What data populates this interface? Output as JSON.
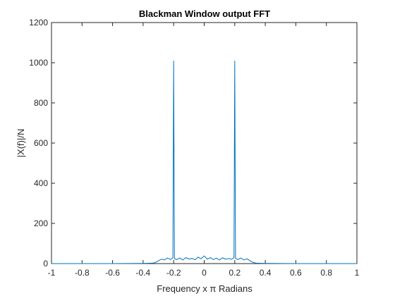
{
  "chart_data": {
    "type": "line",
    "title": "Blackman Window output FFT",
    "xlabel": "Frequency x π Radians",
    "ylabel": "|X(f)|/N",
    "x": [
      -1,
      -0.6,
      -0.4,
      -0.34,
      -0.32,
      -0.3,
      -0.28,
      -0.26,
      -0.24,
      -0.22,
      -0.205,
      -0.2,
      -0.195,
      -0.18,
      -0.16,
      -0.14,
      -0.12,
      -0.1,
      -0.08,
      -0.06,
      -0.04,
      -0.02,
      0,
      0.02,
      0.04,
      0.06,
      0.08,
      0.1,
      0.12,
      0.14,
      0.16,
      0.18,
      0.195,
      0.2,
      0.205,
      0.22,
      0.24,
      0.26,
      0.28,
      0.3,
      0.32,
      0.34,
      0.4,
      0.6,
      1
    ],
    "series": [
      {
        "color": "#0072bd",
        "values": [
          0,
          0,
          1,
          2,
          5,
          14,
          22,
          18,
          28,
          20,
          30,
          1010,
          25,
          20,
          28,
          18,
          30,
          22,
          26,
          19,
          32,
          24,
          38,
          22,
          30,
          20,
          27,
          18,
          29,
          22,
          25,
          21,
          30,
          1010,
          26,
          20,
          28,
          18,
          24,
          14,
          6,
          2,
          1,
          0,
          0
        ]
      }
    ],
    "xlim": [
      -1,
      1
    ],
    "xticks": [
      -1,
      -0.8,
      -0.6,
      -0.4,
      -0.2,
      0,
      0.2,
      0.4,
      0.6,
      0.8,
      1
    ],
    "ylim": [
      0,
      1200
    ],
    "yticks": [
      0,
      200,
      400,
      600,
      800,
      1000,
      1200
    ],
    "grid": false
  }
}
